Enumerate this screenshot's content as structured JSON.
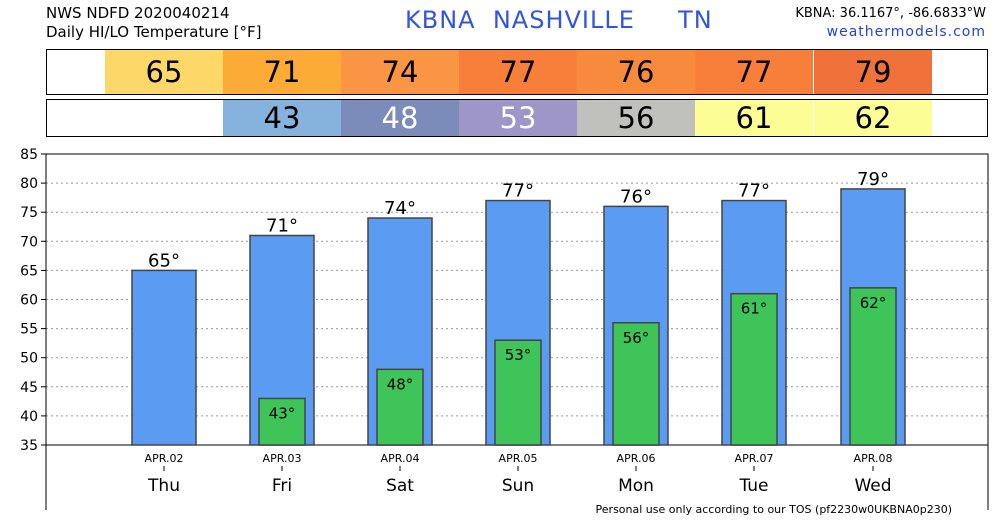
{
  "header": {
    "line1": "NWS NDFD 2020040214",
    "line2": "Daily HI/LO Temperature [°F]",
    "station": "KBNA  NASHVILLE     TN",
    "coords": "KBNA: 36.1167°, -86.6833°W",
    "site": "weathermodels.com"
  },
  "hi_strip": [
    {
      "value": "65",
      "color": "#fdd868"
    },
    {
      "value": "71",
      "color": "#fbab36"
    },
    {
      "value": "74",
      "color": "#f99543"
    },
    {
      "value": "77",
      "color": "#f77f3a"
    },
    {
      "value": "76",
      "color": "#f88a3c"
    },
    {
      "value": "77",
      "color": "#f77f3a"
    },
    {
      "value": "79",
      "color": "#ee7239"
    }
  ],
  "lo_strip": [
    {
      "value": "",
      "color": "#ffffff"
    },
    {
      "value": "43",
      "color": "#86b2de"
    },
    {
      "value": "48",
      "color": "#7b8cba",
      "text_color": "#ffffff"
    },
    {
      "value": "53",
      "color": "#9e96c8",
      "text_color": "#ffffff"
    },
    {
      "value": "56",
      "color": "#c0c0bc"
    },
    {
      "value": "61",
      "color": "#fdfd95"
    },
    {
      "value": "62",
      "color": "#fdfd95"
    }
  ],
  "chart_data": {
    "type": "bar",
    "categories": [
      "Thu",
      "Fri",
      "Sat",
      "Sun",
      "Mon",
      "Tue",
      "Wed"
    ],
    "dates": [
      "APR.02",
      "APR.03",
      "APR.04",
      "APR.05",
      "APR.06",
      "APR.07",
      "APR.08"
    ],
    "series": [
      {
        "values": [
          65,
          71,
          74,
          77,
          76,
          77,
          79
        ],
        "color": "#5b9cf2"
      },
      {
        "values": [
          null,
          43,
          48,
          53,
          56,
          61,
          62
        ],
        "color": "#3fc45a"
      }
    ],
    "hi_labels": [
      "65°",
      "71°",
      "74°",
      "77°",
      "76°",
      "77°",
      "79°"
    ],
    "lo_labels": [
      "",
      "43°",
      "48°",
      "53°",
      "56°",
      "61°",
      "62°"
    ],
    "ylim": [
      35,
      85
    ],
    "yticks": [
      35,
      40,
      45,
      50,
      55,
      60,
      65,
      70,
      75,
      80,
      85
    ],
    "grid": true
  },
  "footer": "Personal use only according to our TOS (pf2230w0UKBNA0p230)"
}
